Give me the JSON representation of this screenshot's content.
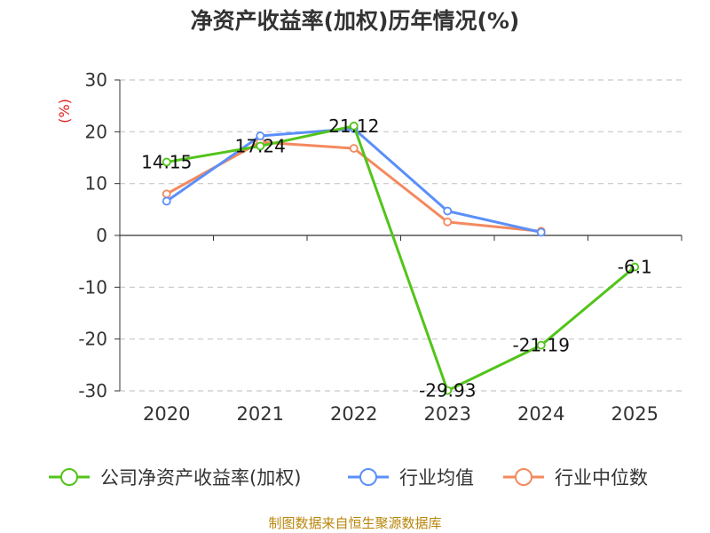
{
  "chart_data": {
    "type": "line",
    "title": "净资产收益率(加权)历年情况(%)",
    "ylabel": "(%)",
    "xlabel": "",
    "ylim": [
      -30,
      30
    ],
    "y_ticks": [
      30,
      20,
      10,
      0,
      -10,
      -20,
      -30
    ],
    "categories": [
      "2020",
      "2021",
      "2022",
      "2023",
      "2024",
      "2025"
    ],
    "series": [
      {
        "name": "公司净资产收益率(加权)",
        "color": "#52c41a",
        "values": [
          14.15,
          17.24,
          21.12,
          -29.93,
          -21.19,
          -6.1
        ],
        "labels": [
          "14.15",
          "17.24",
          "21.12",
          "-29.93",
          "-21.19",
          "-6.1"
        ]
      },
      {
        "name": "行业均值",
        "color": "#5b8ff9",
        "values": [
          6.6,
          19.2,
          20.6,
          4.7,
          0.6,
          null
        ]
      },
      {
        "name": "行业中位数",
        "color": "#f4895f",
        "values": [
          8.0,
          18.0,
          16.8,
          2.6,
          0.8,
          null
        ]
      }
    ],
    "grid": true,
    "legend_position": "bottom"
  },
  "footer": {
    "source": "制图数据来自恒生聚源数据库"
  }
}
